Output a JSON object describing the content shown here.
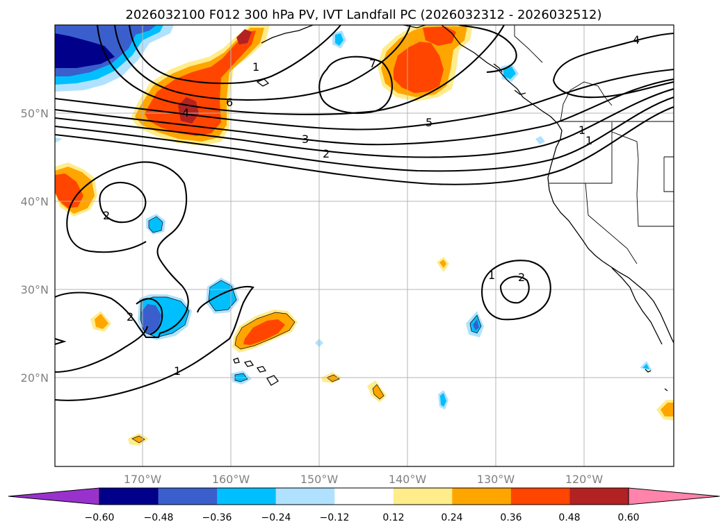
{
  "title": "2026032100 F012 300 hPa PV, IVT Landfall PC (2026032312 - 2026032512)",
  "lat_labels": [
    "50°N",
    "40°N",
    "30°N",
    "20°N"
  ],
  "lon_labels": [
    "170°W",
    "160°W",
    "150°W",
    "140°W",
    "130°W",
    "120°W"
  ],
  "colorbar": {
    "ticks": [
      "−0.60",
      "−0.48",
      "−0.36",
      "−0.24",
      "−0.12",
      "0.12",
      "0.24",
      "0.36",
      "0.48",
      "0.60"
    ],
    "colors": [
      "#9932cc",
      "#00008b",
      "#3a5fcd",
      "#00bfff",
      "#b0e2ff",
      "#ffffff",
      "#ffec8b",
      "#ffa500",
      "#ff4500",
      "#b22222",
      "#ff83aa"
    ]
  },
  "contour_labels": [
    "6",
    "4",
    "1",
    "7",
    "5",
    "3",
    "2",
    "4",
    "1",
    "2",
    "1",
    "2",
    "1",
    "2",
    "1"
  ],
  "palette": {
    "pos_light": "#ffec8b",
    "pos_orange": "#ffa500",
    "pos_red": "#ff4500",
    "pos_dark": "#b22222",
    "neg_light": "#b0e2ff",
    "neg_cyan": "#00bfff",
    "neg_blue": "#3a5fcd",
    "neg_navy": "#00008b"
  }
}
